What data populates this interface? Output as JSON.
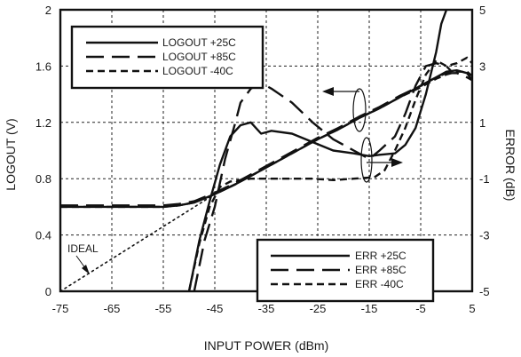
{
  "chart_data": {
    "type": "line",
    "xlabel": "INPUT POWER (dBm)",
    "ylabel": "LOGOUT (V)",
    "y2label": "ERROR  (dB)",
    "xlim": [
      -75,
      5
    ],
    "ylim": [
      0,
      2
    ],
    "y2lim": [
      -5,
      5
    ],
    "x_ticks": [
      "-75",
      "-65",
      "-55",
      "-45",
      "-35",
      "-25",
      "-15",
      "-5",
      "5"
    ],
    "y_ticks": [
      "0",
      "0.4",
      "0.8",
      "1.2",
      "1.6",
      "2"
    ],
    "y2_ticks": [
      "-5",
      "-3",
      "-1",
      "1",
      "3",
      "5"
    ],
    "grid": true,
    "annotation": "IDEAL",
    "legend_logout": {
      "placement": "top-left",
      "entries": [
        "LOGOUT +25C",
        "LOGOUT +85C",
        "LOGOUT  -40C"
      ]
    },
    "legend_err": {
      "placement": "bottom-right",
      "entries": [
        "ERR +25C",
        "ERR +85C",
        "ERR  -40C"
      ]
    },
    "series": [
      {
        "name": "LOGOUT +25C",
        "axis": "left",
        "style": "solid",
        "points": [
          [
            -75,
            0.6
          ],
          [
            -65,
            0.6
          ],
          [
            -55,
            0.6
          ],
          [
            -52,
            0.61
          ],
          [
            -49,
            0.63
          ],
          [
            -47,
            0.66
          ],
          [
            -45,
            0.69
          ],
          [
            -41,
            0.76
          ],
          [
            -37,
            0.84
          ],
          [
            -33,
            0.92
          ],
          [
            -29,
            1.0
          ],
          [
            -25,
            1.08
          ],
          [
            -21,
            1.15
          ],
          [
            -17,
            1.23
          ],
          [
            -13,
            1.3
          ],
          [
            -9,
            1.38
          ],
          [
            -5,
            1.46
          ],
          [
            -2,
            1.52
          ],
          [
            0,
            1.56
          ],
          [
            2,
            1.57
          ],
          [
            4,
            1.55
          ],
          [
            5,
            1.5
          ]
        ]
      },
      {
        "name": "LOGOUT +85C",
        "axis": "left",
        "style": "dash",
        "points": [
          [
            -75,
            0.61
          ],
          [
            -65,
            0.61
          ],
          [
            -55,
            0.61
          ],
          [
            -52,
            0.62
          ],
          [
            -49,
            0.64
          ],
          [
            -47,
            0.67
          ],
          [
            -45,
            0.7
          ],
          [
            -41,
            0.77
          ],
          [
            -37,
            0.85
          ],
          [
            -33,
            0.93
          ],
          [
            -29,
            1.01
          ],
          [
            -25,
            1.09
          ],
          [
            -21,
            1.16
          ],
          [
            -17,
            1.24
          ],
          [
            -13,
            1.31
          ],
          [
            -9,
            1.39
          ],
          [
            -5,
            1.46
          ],
          [
            -2,
            1.52
          ],
          [
            0,
            1.55
          ],
          [
            2,
            1.55
          ],
          [
            4,
            1.52
          ],
          [
            5,
            1.5
          ]
        ]
      },
      {
        "name": "LOGOUT  -40C",
        "axis": "left",
        "style": "short-dash",
        "points": [
          [
            -75,
            0.6
          ],
          [
            -65,
            0.6
          ],
          [
            -55,
            0.6
          ],
          [
            -52,
            0.61
          ],
          [
            -49,
            0.63
          ],
          [
            -47,
            0.66
          ],
          [
            -45,
            0.69
          ],
          [
            -41,
            0.76
          ],
          [
            -37,
            0.84
          ],
          [
            -33,
            0.92
          ],
          [
            -29,
            1.0
          ],
          [
            -25,
            1.08
          ],
          [
            -21,
            1.15
          ],
          [
            -17,
            1.23
          ],
          [
            -13,
            1.3
          ],
          [
            -9,
            1.38
          ],
          [
            -5,
            1.45
          ],
          [
            -2,
            1.51
          ],
          [
            0,
            1.54
          ],
          [
            2,
            1.56
          ],
          [
            4,
            1.56
          ],
          [
            5,
            1.53
          ]
        ]
      },
      {
        "name": "ERR +25C",
        "axis": "right",
        "style": "solid",
        "points": [
          [
            -50,
            -5.0
          ],
          [
            -48,
            -3.2
          ],
          [
            -46,
            -1.8
          ],
          [
            -44,
            -0.5
          ],
          [
            -42,
            0.5
          ],
          [
            -40,
            0.9
          ],
          [
            -38,
            1.0
          ],
          [
            -36,
            0.6
          ],
          [
            -34,
            0.7
          ],
          [
            -30,
            0.6
          ],
          [
            -26,
            0.3
          ],
          [
            -22,
            0.0
          ],
          [
            -18,
            -0.1
          ],
          [
            -15,
            -0.2
          ],
          [
            -13,
            -0.15
          ],
          [
            -10,
            -0.1
          ],
          [
            -8,
            0.2
          ],
          [
            -6,
            0.8
          ],
          [
            -4,
            2.0
          ],
          [
            -2,
            3.5
          ],
          [
            -1,
            4.5
          ],
          [
            0,
            5.0
          ]
        ]
      },
      {
        "name": "ERR +85C",
        "axis": "right",
        "style": "dash",
        "points": [
          [
            -49,
            -5.0
          ],
          [
            -47,
            -3.2
          ],
          [
            -45,
            -2.0
          ],
          [
            -43,
            -0.3
          ],
          [
            -41,
            1.0
          ],
          [
            -40,
            1.7
          ],
          [
            -38,
            2.2
          ],
          [
            -36,
            2.4
          ],
          [
            -34,
            2.2
          ],
          [
            -30,
            1.7
          ],
          [
            -26,
            1.0
          ],
          [
            -22,
            0.4
          ],
          [
            -18,
            0.0
          ],
          [
            -16,
            -0.2
          ],
          [
            -15,
            -0.3
          ],
          [
            -13,
            0.0
          ],
          [
            -10,
            0.5
          ],
          [
            -8,
            1.3
          ],
          [
            -6,
            2.3
          ],
          [
            -4,
            3.0
          ],
          [
            -2,
            3.1
          ],
          [
            0,
            3.0
          ],
          [
            1,
            2.8
          ]
        ]
      },
      {
        "name": "ERR  -40C",
        "axis": "right",
        "style": "short-dash",
        "points": [
          [
            -50,
            -5.0
          ],
          [
            -48,
            -3.3
          ],
          [
            -46,
            -2.0
          ],
          [
            -44,
            -1.3
          ],
          [
            -42,
            -1.1
          ],
          [
            -38,
            -1.0
          ],
          [
            -34,
            -1.0
          ],
          [
            -30,
            -1.0
          ],
          [
            -26,
            -1.0
          ],
          [
            -22,
            -1.05
          ],
          [
            -18,
            -1.0
          ],
          [
            -14,
            -0.95
          ],
          [
            -12,
            -0.7
          ],
          [
            -10,
            0.0
          ],
          [
            -8,
            0.8
          ],
          [
            -6,
            1.8
          ],
          [
            -4,
            2.7
          ],
          [
            -2,
            3.2
          ],
          [
            0,
            3.0
          ],
          [
            2,
            3.1
          ],
          [
            4,
            3.3
          ],
          [
            5,
            3.1
          ]
        ]
      },
      {
        "name": "IDEAL",
        "axis": "left",
        "style": "dot",
        "points": [
          [
            -75,
            0.0
          ],
          [
            -45,
            0.69
          ]
        ]
      }
    ]
  }
}
